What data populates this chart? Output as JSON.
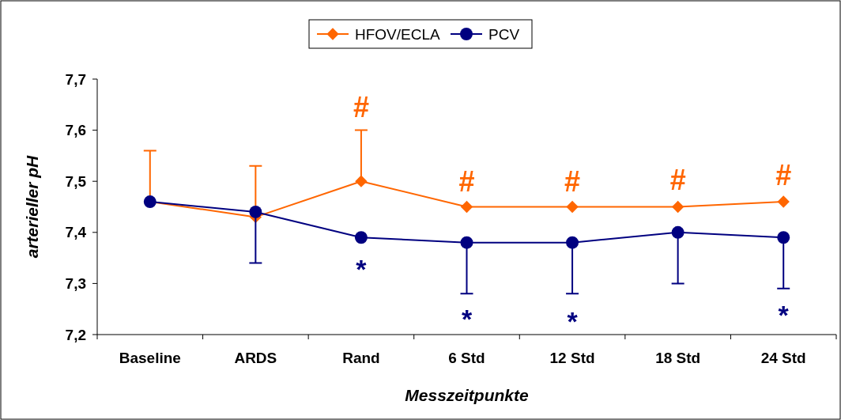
{
  "chart_data": {
    "type": "line",
    "xlabel": "Messzeitpunkte",
    "ylabel": "arterieller pH",
    "categories": [
      "Baseline",
      "ARDS",
      "Rand",
      "6 Std",
      "12 Std",
      "18 Std",
      "24 Std"
    ],
    "series": [
      {
        "name": "HFOV/ECLA",
        "color": "#ff6600",
        "marker": "diamond",
        "values": [
          7.46,
          7.43,
          7.5,
          7.45,
          7.45,
          7.45,
          7.46
        ],
        "errors": [
          [
            7.46,
            7.56
          ],
          [
            7.43,
            7.53
          ],
          [
            7.5,
            7.6
          ],
          null,
          null,
          null,
          null
        ]
      },
      {
        "name": "PCV",
        "color": "#000080",
        "marker": "circle",
        "values": [
          7.46,
          7.44,
          7.39,
          7.38,
          7.38,
          7.4,
          7.39
        ],
        "errors": [
          null,
          [
            7.34,
            7.44
          ],
          null,
          [
            7.28,
            7.38
          ],
          [
            7.28,
            7.38
          ],
          [
            7.3,
            7.4
          ],
          [
            7.29,
            7.39
          ]
        ]
      }
    ],
    "ylim": [
      7.2,
      7.7
    ],
    "yticks": [
      {
        "value": 7.2,
        "label": "7,2"
      },
      {
        "value": 7.3,
        "label": "7,3"
      },
      {
        "value": 7.4,
        "label": "7,4"
      },
      {
        "value": 7.5,
        "label": "7,5"
      },
      {
        "value": 7.6,
        "label": "7,6"
      },
      {
        "value": 7.7,
        "label": "7,7"
      }
    ],
    "annotations": [
      "#",
      "#",
      "#",
      "#",
      "#",
      "*",
      "*",
      "*",
      "*"
    ],
    "legend": "top",
    "grid": false,
    "line_style": "solid"
  }
}
